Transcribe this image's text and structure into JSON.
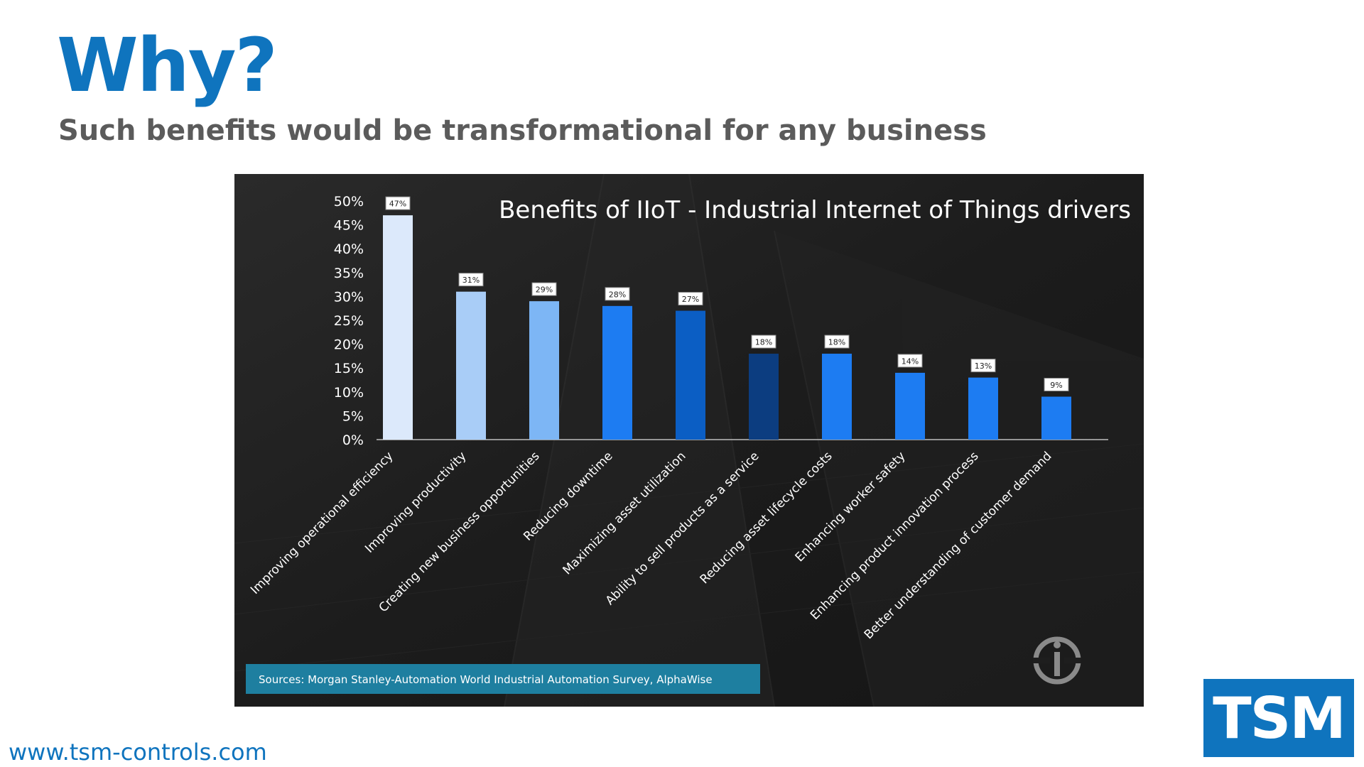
{
  "slide": {
    "title": "Why?",
    "subtitle": "Such benefits would be transformational for any business",
    "website": "www.tsm-controls.com",
    "logo_text": "TSM"
  },
  "colors": {
    "brand_blue": "#0F74BE",
    "subtitle_gray": "#5b5b5b",
    "panel_bg": "#1e1e1e",
    "source_bar": "#1e7fa0"
  },
  "chart_data": {
    "type": "bar",
    "title": "Benefits of IIoT - Industrial Internet of Things drivers",
    "source": "Sources: Morgan Stanley-Automation World Industrial Automation Survey, AlphaWise",
    "ylim": [
      0,
      50
    ],
    "yticks": [
      "0%",
      "5%",
      "10%",
      "15%",
      "20%",
      "25%",
      "30%",
      "35%",
      "40%",
      "45%",
      "50%"
    ],
    "grid": false,
    "legend": "none",
    "categories": [
      "Improving operational efficiency",
      "Improving productivity",
      "Creating new business opportunities",
      "Reducing downtime",
      "Maximizing asset utilization",
      "Ability to sell products as a service",
      "Reducing asset lifecycle costs",
      "Enhancing worker safety",
      "Enhancing product innovation process",
      "Better understanding of customer demand"
    ],
    "values": [
      47,
      31,
      29,
      28,
      27,
      18,
      18,
      14,
      13,
      9
    ],
    "value_labels": [
      "47%",
      "31%",
      "29%",
      "28%",
      "27%",
      "18%",
      "18%",
      "14%",
      "13%",
      "9%"
    ],
    "bar_colors": [
      "#dce9fb",
      "#a9cdf7",
      "#7db6f5",
      "#1d7cf2",
      "#0b5ec4",
      "#0c3d80",
      "#1d7cf2",
      "#1d7cf2",
      "#1d7cf2",
      "#1d7cf2"
    ]
  }
}
